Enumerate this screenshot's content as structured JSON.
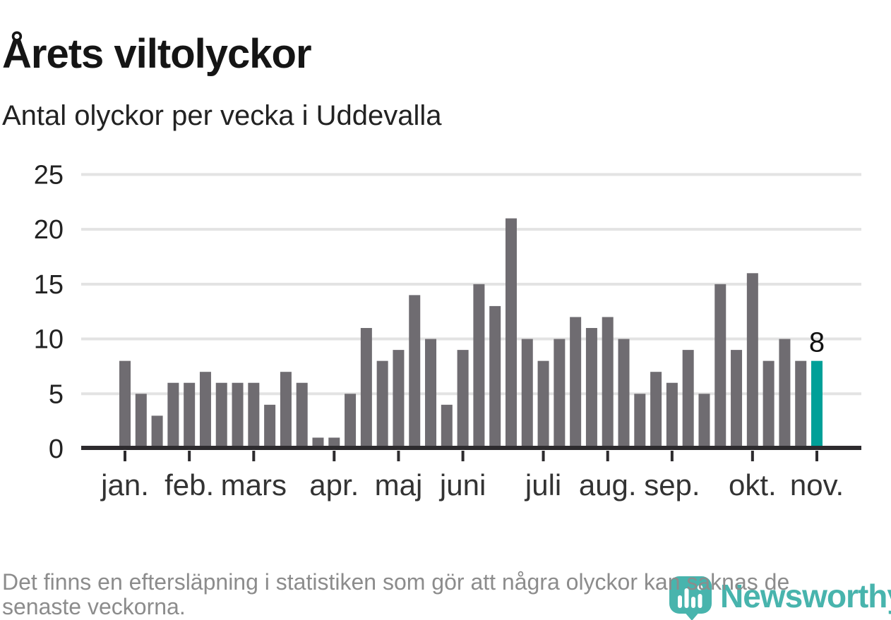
{
  "title": "Årets viltolyckor",
  "subtitle": "Antal olyckor per vecka i Uddevalla",
  "footer": {
    "line1": "Det finns en eftersläpning i statistiken som gör att några olyckor kan saknas de",
    "line2": "senaste veckorna."
  },
  "logo": {
    "name": "Newsworthy",
    "color": "#2faaa2",
    "icon": "speech-bubble-bar-chart-icon"
  },
  "chart_data": {
    "type": "bar",
    "title": "Årets viltolyckor",
    "subtitle": "Antal olyckor per vecka i Uddevalla",
    "xlabel": "",
    "ylabel": "",
    "ylim": [
      0,
      25
    ],
    "yticks": [
      0,
      5,
      10,
      15,
      20,
      25
    ],
    "grid": true,
    "legend": "none",
    "x_unit": "vecka",
    "values": [
      8,
      5,
      3,
      6,
      6,
      7,
      6,
      6,
      6,
      4,
      7,
      6,
      1,
      1,
      5,
      11,
      8,
      9,
      14,
      10,
      4,
      9,
      15,
      13,
      21,
      10,
      8,
      10,
      12,
      11,
      12,
      10,
      5,
      7,
      6,
      9,
      5,
      15,
      9,
      16,
      8,
      10,
      8,
      8
    ],
    "highlight_index": 43,
    "highlight_value_label": "8",
    "bar_color": "#6f6c71",
    "highlight_color": "#00a098",
    "axis_color": "#2d2b2e",
    "gridline_color": "#e3e3e3",
    "tick_label_color": "#333333",
    "month_ticks": [
      {
        "label": "jan.",
        "week_index": 0
      },
      {
        "label": "feb.",
        "week_index": 4
      },
      {
        "label": "mars",
        "week_index": 8
      },
      {
        "label": "apr.",
        "week_index": 13
      },
      {
        "label": "maj",
        "week_index": 17
      },
      {
        "label": "juni",
        "week_index": 21
      },
      {
        "label": "juli",
        "week_index": 26
      },
      {
        "label": "aug.",
        "week_index": 30
      },
      {
        "label": "sep.",
        "week_index": 34
      },
      {
        "label": "okt.",
        "week_index": 39
      },
      {
        "label": "nov.",
        "week_index": 43
      }
    ]
  }
}
